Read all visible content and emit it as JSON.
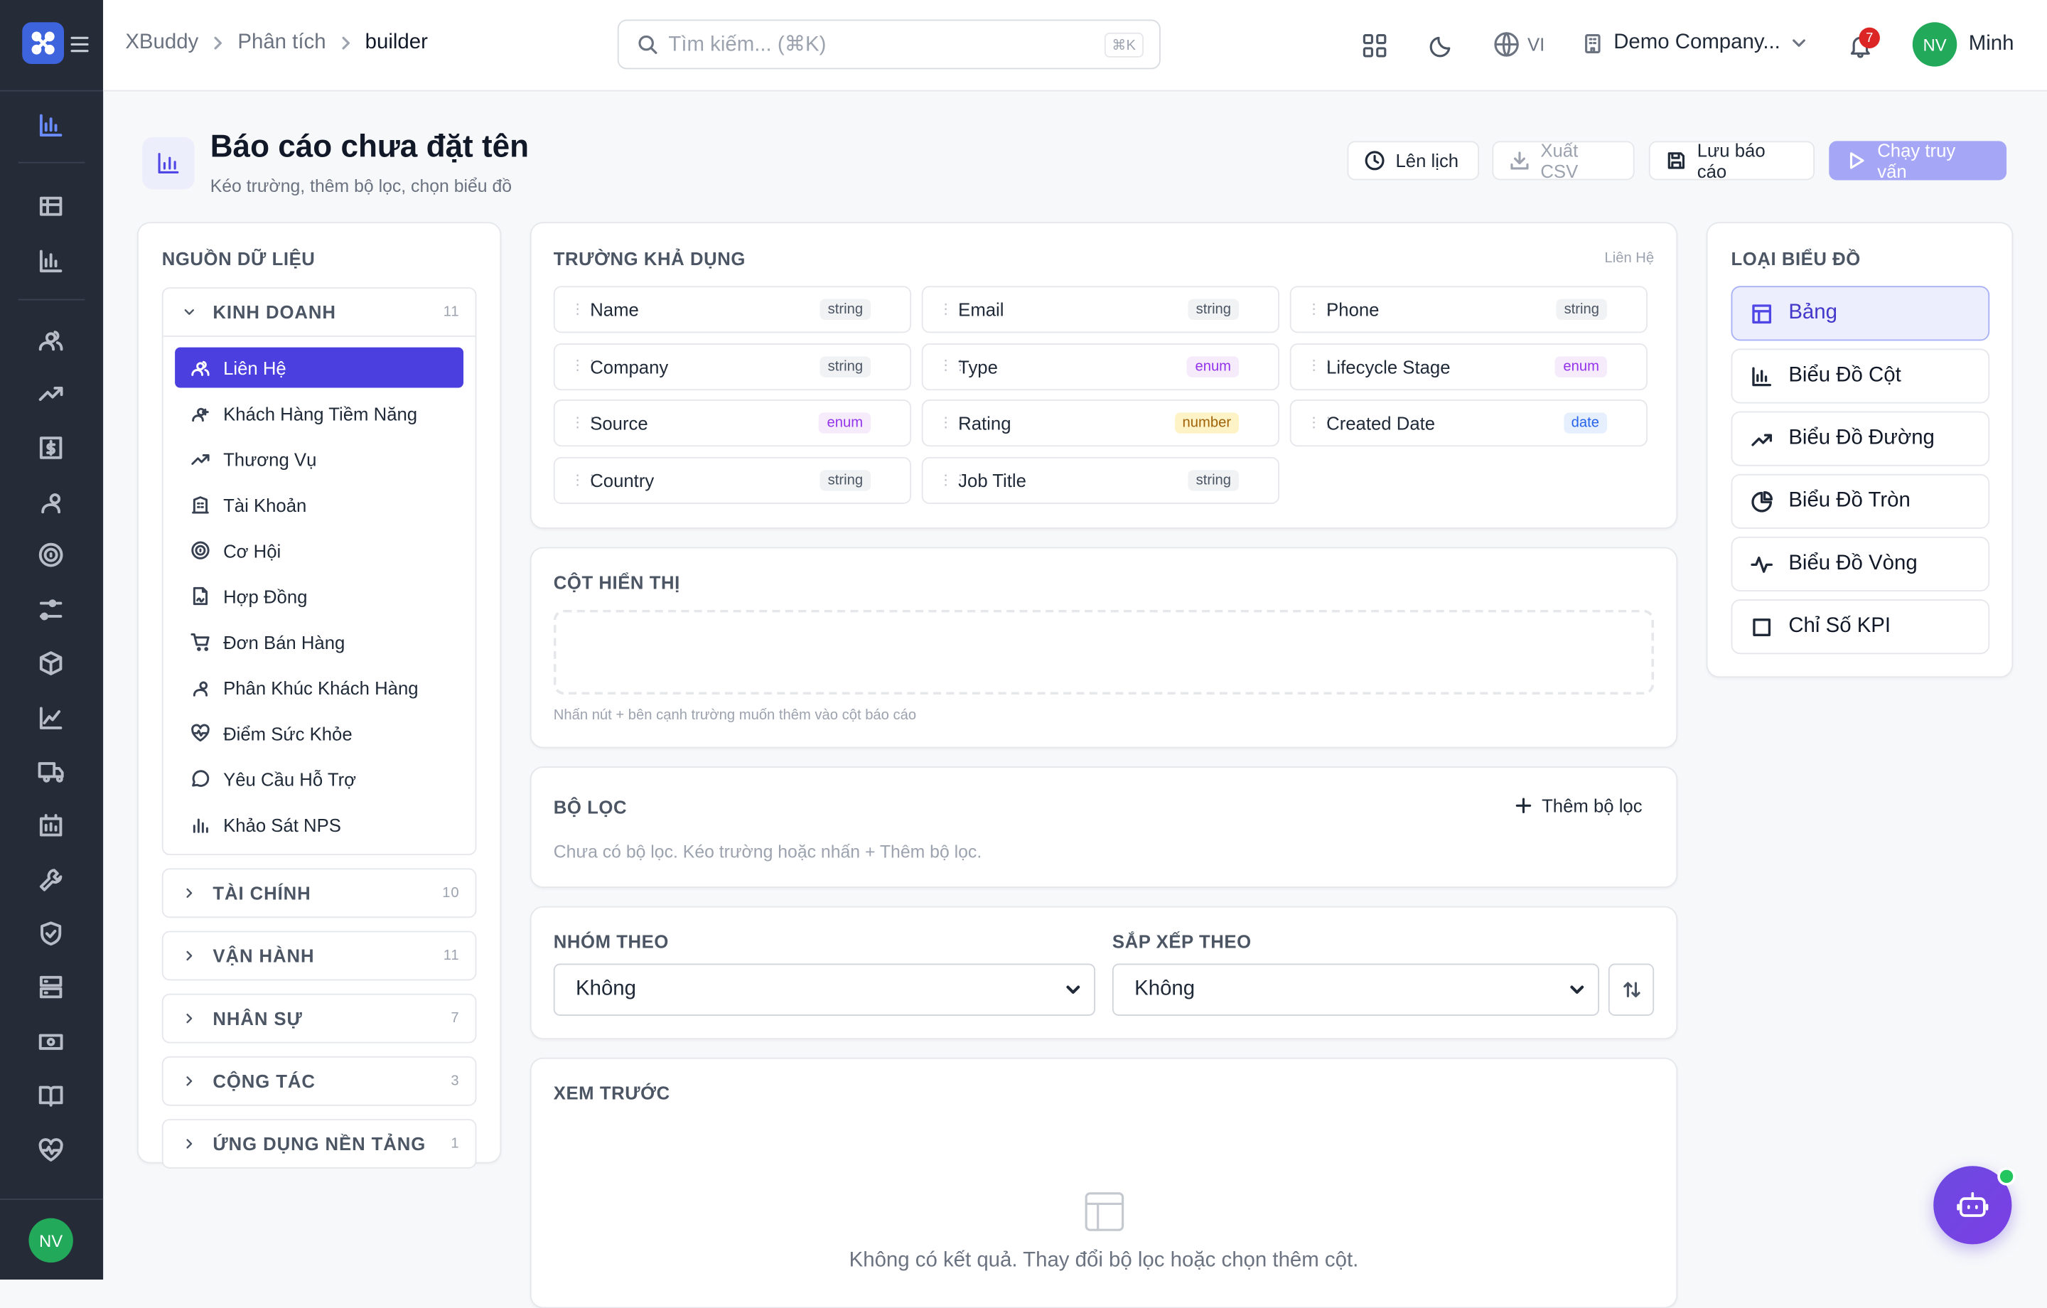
{
  "topbar": {
    "breadcrumb": [
      "XBuddy",
      "Phân tích",
      "builder"
    ],
    "search_placeholder": "Tìm kiếm... (⌘K)",
    "search_shortcut": "⌘K",
    "language": "VI",
    "company": "Demo Company...",
    "notifications": 7,
    "user_initials": "NV",
    "user_name": "Minh"
  },
  "sidebar": {
    "user_initials": "NV"
  },
  "header": {
    "title": "Báo cáo chưa đặt tên",
    "subtitle": "Kéo trường, thêm bộ lọc, chọn biểu đồ",
    "actions": [
      "Lên lịch",
      "Xuất CSV",
      "Lưu báo cáo",
      "Chạy truy vấn"
    ]
  },
  "data_source": {
    "title": "NGUỒN DỮ LIỆU",
    "groups": [
      {
        "name": "KINH DOANH",
        "count": 11,
        "items": [
          "Liên Hệ",
          "Khách Hàng Tiềm Năng",
          "Thương Vụ",
          "Tài Khoản",
          "Cơ Hội",
          "Hợp Đồng",
          "Đơn Bán Hàng",
          "Phân Khúc Khách Hàng",
          "Điểm Sức Khỏe",
          "Yêu Cầu Hỗ Trợ",
          "Khảo Sát NPS"
        ]
      },
      {
        "name": "TÀI CHÍNH",
        "count": 10
      },
      {
        "name": "VẬN HÀNH",
        "count": 11
      },
      {
        "name": "NHÂN SỰ",
        "count": 7
      },
      {
        "name": "CỘNG TÁC",
        "count": 3
      },
      {
        "name": "ỨNG DỤNG NỀN TẢNG",
        "count": 1
      }
    ]
  },
  "fields": {
    "title": "TRƯỜNG KHẢ DỤNG",
    "source": "Liên Hệ",
    "items": [
      {
        "name": "Name",
        "type": "string"
      },
      {
        "name": "Email",
        "type": "string"
      },
      {
        "name": "Phone",
        "type": "string"
      },
      {
        "name": "Company",
        "type": "string"
      },
      {
        "name": "Type",
        "type": "enum"
      },
      {
        "name": "Lifecycle Stage",
        "type": "enum"
      },
      {
        "name": "Source",
        "type": "enum"
      },
      {
        "name": "Rating",
        "type": "number"
      },
      {
        "name": "Created Date",
        "type": "date"
      },
      {
        "name": "Country",
        "type": "string"
      },
      {
        "name": "Job Title",
        "type": "string"
      }
    ],
    "badge_styles": {
      "string": {
        "bg": "#f1f2f4",
        "fg": "#4b5563"
      },
      "enum": {
        "bg": "#f5ebfb",
        "fg": "#9333ea"
      },
      "number": {
        "bg": "#fdf3c7",
        "fg": "#a16207"
      },
      "date": {
        "bg": "#e6effd",
        "fg": "#2563eb"
      }
    }
  },
  "columns": {
    "title": "CỘT HIỂN THỊ",
    "hint": "Nhấn nút + bên cạnh trường muốn thêm vào cột báo cáo"
  },
  "filters": {
    "title": "BỘ LỌC",
    "add": "Thêm bộ lọc",
    "empty": "Chưa có bộ lọc. Kéo trường hoặc nhấn + Thêm bộ lọc."
  },
  "grouping": {
    "group_label": "NHÓM THEO",
    "group_value": "Không",
    "sort_label": "SẮP XẾP THEO",
    "sort_value": "Không"
  },
  "preview": {
    "title": "XEM TRƯỚC",
    "empty": "Không có kết quả. Thay đổi bộ lọc hoặc chọn thêm cột."
  },
  "chart_types": {
    "title": "LOẠI BIỂU ĐỒ",
    "items": [
      "Bảng",
      "Biểu Đồ Cột",
      "Biểu Đồ Đường",
      "Biểu Đồ Tròn",
      "Biểu Đồ Vòng",
      "Chỉ Số KPI"
    ]
  }
}
